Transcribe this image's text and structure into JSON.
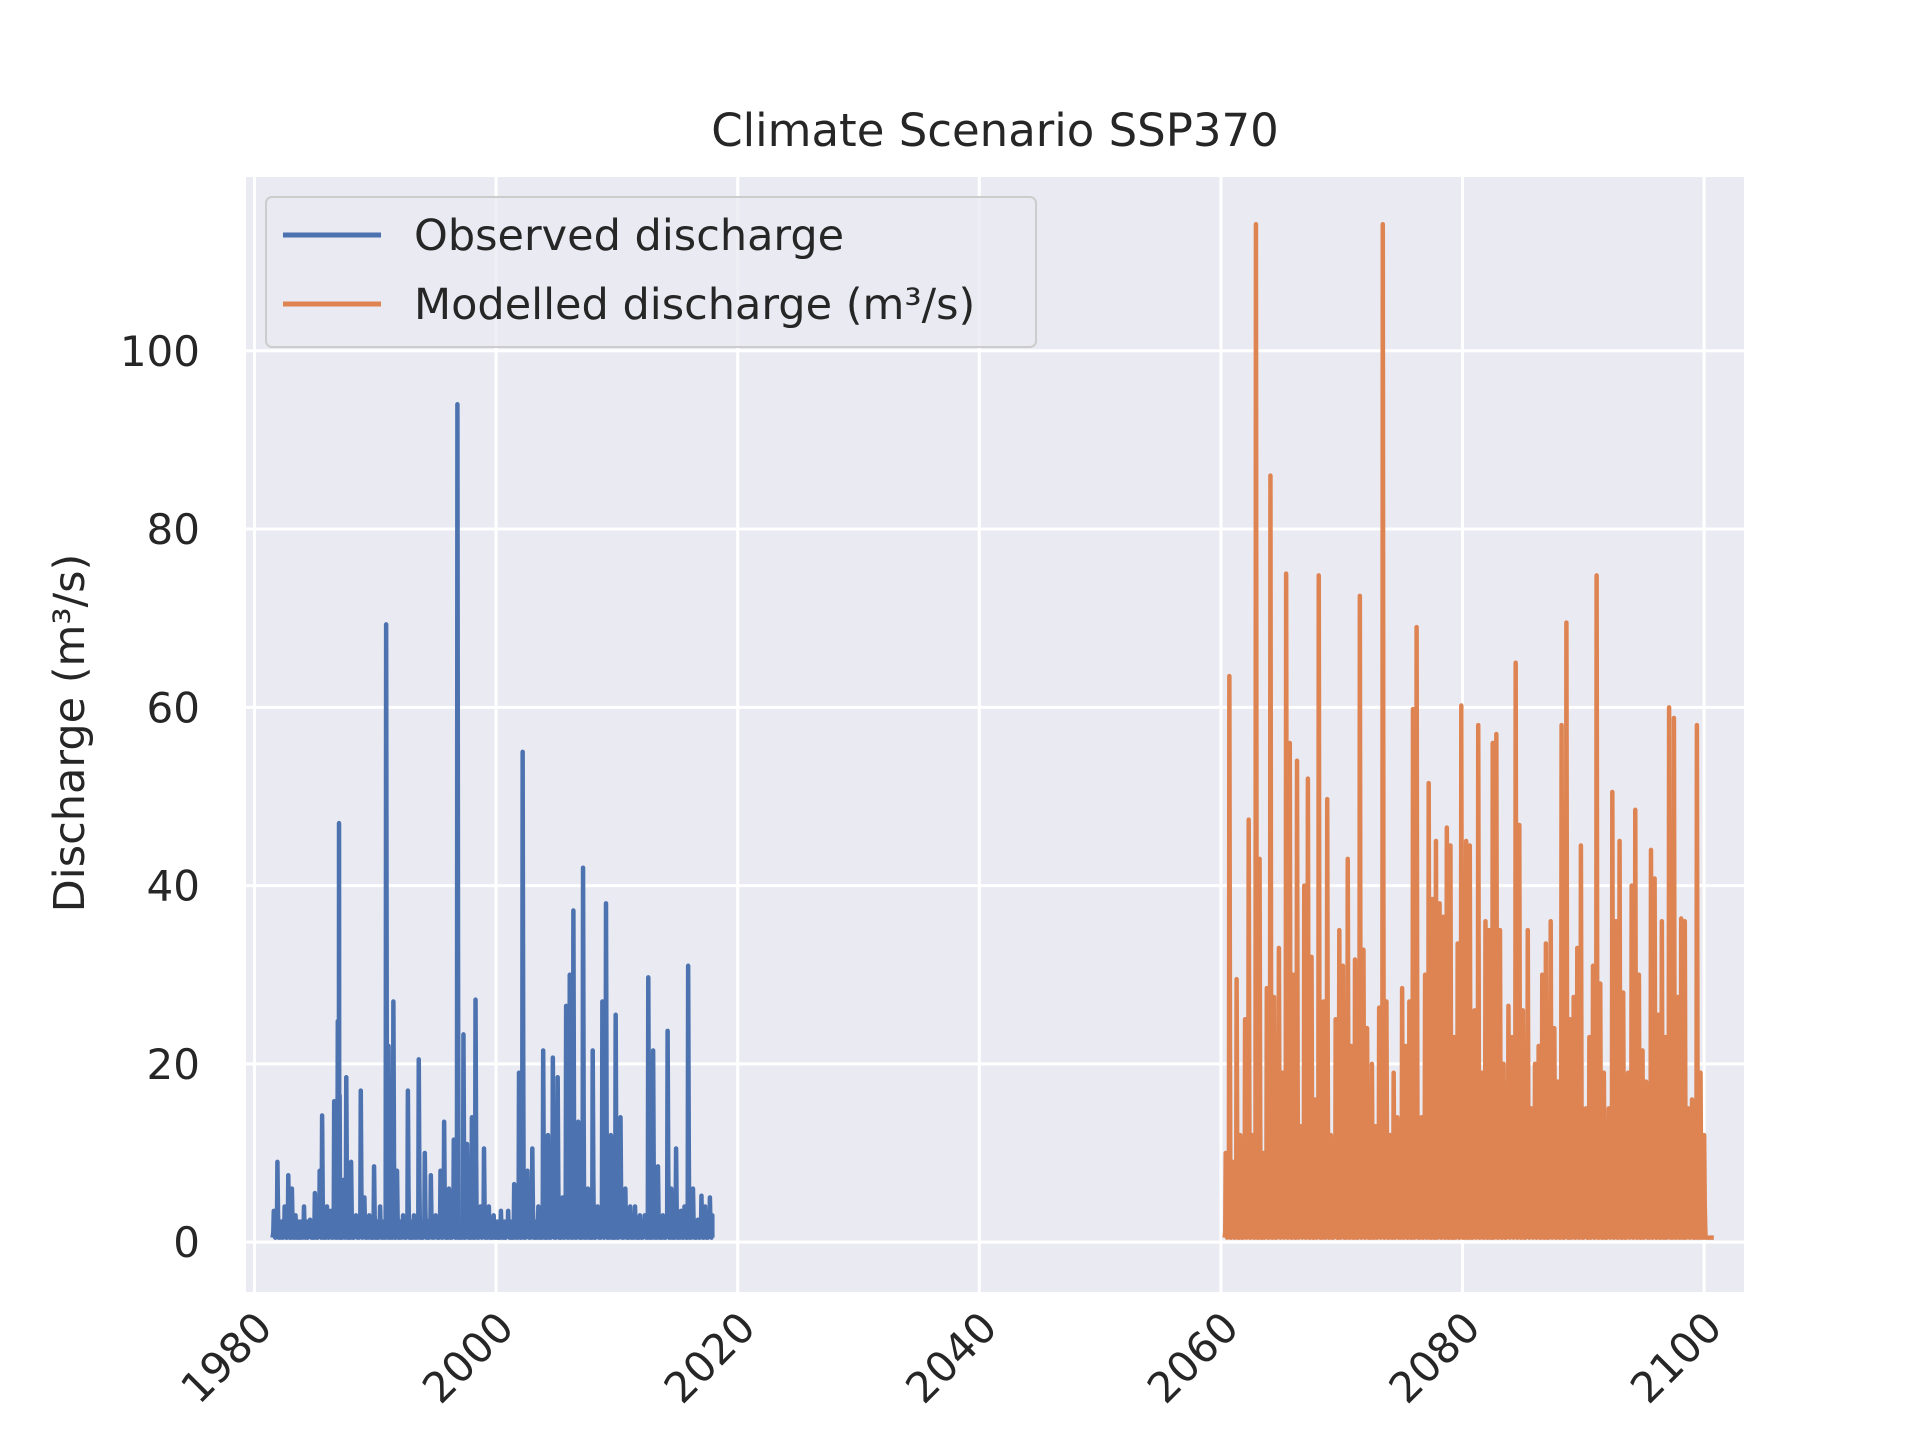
{
  "chart_data": {
    "type": "line",
    "title": "Climate Scenario SSP370",
    "xlabel": "",
    "ylabel": "Discharge (m³/s)",
    "xlim": [
      1979.3,
      2103.3
    ],
    "ylim": [
      -5.6,
      119.5
    ],
    "x_ticks": [
      1980,
      2000,
      2020,
      2040,
      2060,
      2080,
      2100
    ],
    "x_tick_labels": [
      "1980",
      "2000",
      "2020",
      "2040",
      "2060",
      "2080",
      "2100"
    ],
    "y_ticks": [
      0,
      20,
      40,
      60,
      80,
      100
    ],
    "y_tick_labels": [
      "0",
      "20",
      "40",
      "60",
      "80",
      "100"
    ],
    "grid": true,
    "legend_position": "upper-left",
    "background_color": "#EAEAF2",
    "grid_color": "#FFFFFF",
    "series": [
      {
        "name": "Observed discharge",
        "color": "#4C72B0",
        "x_start": 1981.5,
        "x_end": 2017.9,
        "baseline": 0.5,
        "peaks": [
          [
            1981.6,
            3.5
          ],
          [
            1981.9,
            9.0
          ],
          [
            1982.5,
            4.0
          ],
          [
            1982.8,
            7.5
          ],
          [
            1983.1,
            6.0
          ],
          [
            1983.4,
            3.0
          ],
          [
            1984.1,
            4.0
          ],
          [
            1984.6,
            2.5
          ],
          [
            1985.0,
            5.5
          ],
          [
            1985.4,
            8.0
          ],
          [
            1985.6,
            14.2
          ],
          [
            1986.0,
            4.0
          ],
          [
            1986.3,
            3.5
          ],
          [
            1986.6,
            15.8
          ],
          [
            1986.9,
            24.8
          ],
          [
            1987.0,
            47.0
          ],
          [
            1987.4,
            7.0
          ],
          [
            1987.6,
            18.5
          ],
          [
            1988.0,
            9.0
          ],
          [
            1988.4,
            3.0
          ],
          [
            1988.8,
            17.0
          ],
          [
            1989.1,
            5.0
          ],
          [
            1989.5,
            3.0
          ],
          [
            1989.9,
            8.5
          ],
          [
            1990.4,
            4.0
          ],
          [
            1990.9,
            69.3
          ],
          [
            1991.1,
            22.0
          ],
          [
            1991.5,
            27.0
          ],
          [
            1991.8,
            8.0
          ],
          [
            1992.3,
            3.0
          ],
          [
            1992.7,
            17.0
          ],
          [
            1993.2,
            3.0
          ],
          [
            1993.6,
            20.5
          ],
          [
            1994.1,
            10.0
          ],
          [
            1994.6,
            7.5
          ],
          [
            1995.0,
            3.0
          ],
          [
            1995.4,
            8.0
          ],
          [
            1995.7,
            13.5
          ],
          [
            1996.1,
            6.0
          ],
          [
            1996.5,
            11.5
          ],
          [
            1996.8,
            94.0
          ],
          [
            1997.3,
            23.3
          ],
          [
            1997.6,
            11.0
          ],
          [
            1998.0,
            14.0
          ],
          [
            1998.3,
            27.2
          ],
          [
            1998.7,
            4.0
          ],
          [
            1999.0,
            10.5
          ],
          [
            1999.4,
            4.0
          ],
          [
            1999.8,
            3.0
          ],
          [
            2000.4,
            3.5
          ],
          [
            2001.0,
            3.5
          ],
          [
            2001.5,
            6.5
          ],
          [
            2001.9,
            19.0
          ],
          [
            2002.2,
            55.0
          ],
          [
            2002.6,
            8.0
          ],
          [
            2003.0,
            10.5
          ],
          [
            2003.5,
            4.0
          ],
          [
            2003.9,
            21.5
          ],
          [
            2004.3,
            12.0
          ],
          [
            2004.7,
            20.7
          ],
          [
            2005.1,
            18.5
          ],
          [
            2005.5,
            5.0
          ],
          [
            2005.8,
            26.5
          ],
          [
            2006.1,
            30.0
          ],
          [
            2006.4,
            37.2
          ],
          [
            2006.8,
            13.5
          ],
          [
            2007.2,
            42.0
          ],
          [
            2007.6,
            6.0
          ],
          [
            2008.0,
            21.5
          ],
          [
            2008.4,
            4.0
          ],
          [
            2008.8,
            27.0
          ],
          [
            2009.1,
            38.0
          ],
          [
            2009.5,
            12.0
          ],
          [
            2009.9,
            25.5
          ],
          [
            2010.3,
            14.0
          ],
          [
            2010.7,
            6.0
          ],
          [
            2011.1,
            4.0
          ],
          [
            2011.5,
            4.0
          ],
          [
            2011.9,
            3.0
          ],
          [
            2012.3,
            3.0
          ],
          [
            2012.6,
            29.7
          ],
          [
            2013.0,
            21.5
          ],
          [
            2013.4,
            8.5
          ],
          [
            2013.8,
            3.0
          ],
          [
            2014.2,
            23.7
          ],
          [
            2014.5,
            6.0
          ],
          [
            2014.9,
            10.5
          ],
          [
            2015.3,
            3.5
          ],
          [
            2015.6,
            4.0
          ],
          [
            2015.9,
            31.0
          ],
          [
            2016.3,
            6.0
          ],
          [
            2016.7,
            2.5
          ],
          [
            2017.0,
            5.2
          ],
          [
            2017.3,
            4.0
          ],
          [
            2017.7,
            5.0
          ],
          [
            2017.9,
            3.0
          ]
        ]
      },
      {
        "name": "Modelled discharge (m³/s)",
        "color": "#DD8452",
        "x_start": 2060.3,
        "x_end": 2100.8,
        "baseline": 0.5,
        "peaks": [
          [
            2060.4,
            10.0
          ],
          [
            2060.7,
            63.5
          ],
          [
            2061.0,
            9.0
          ],
          [
            2061.3,
            29.5
          ],
          [
            2061.6,
            12.0
          ],
          [
            2062.0,
            25.0
          ],
          [
            2062.3,
            47.4
          ],
          [
            2062.6,
            12.0
          ],
          [
            2062.9,
            114.2
          ],
          [
            2063.2,
            43.0
          ],
          [
            2063.5,
            10.0
          ],
          [
            2063.8,
            28.5
          ],
          [
            2064.1,
            86.0
          ],
          [
            2064.4,
            27.5
          ],
          [
            2064.8,
            33.0
          ],
          [
            2065.1,
            19.0
          ],
          [
            2065.4,
            75.0
          ],
          [
            2065.7,
            56.0
          ],
          [
            2066.0,
            30.0
          ],
          [
            2066.3,
            54.0
          ],
          [
            2066.6,
            13.0
          ],
          [
            2066.9,
            40.0
          ],
          [
            2067.2,
            52.0
          ],
          [
            2067.5,
            32.0
          ],
          [
            2067.8,
            16.0
          ],
          [
            2068.1,
            74.8
          ],
          [
            2068.5,
            27.0
          ],
          [
            2068.8,
            49.7
          ],
          [
            2069.1,
            12.0
          ],
          [
            2069.5,
            25.0
          ],
          [
            2069.8,
            35.0
          ],
          [
            2070.1,
            31.0
          ],
          [
            2070.5,
            43.0
          ],
          [
            2070.8,
            22.0
          ],
          [
            2071.1,
            31.7
          ],
          [
            2071.5,
            72.5
          ],
          [
            2071.8,
            32.8
          ],
          [
            2072.1,
            24.0
          ],
          [
            2072.5,
            20.0
          ],
          [
            2072.8,
            13.0
          ],
          [
            2073.1,
            26.3
          ],
          [
            2073.4,
            114.2
          ],
          [
            2073.7,
            27.0
          ],
          [
            2074.0,
            12.0
          ],
          [
            2074.3,
            19.0
          ],
          [
            2074.6,
            14.0
          ],
          [
            2075.0,
            28.5
          ],
          [
            2075.3,
            22.0
          ],
          [
            2075.6,
            27.0
          ],
          [
            2075.9,
            59.8
          ],
          [
            2076.2,
            69.0
          ],
          [
            2076.6,
            14.0
          ],
          [
            2076.9,
            30.0
          ],
          [
            2077.2,
            51.5
          ],
          [
            2077.5,
            38.5
          ],
          [
            2077.8,
            45.0
          ],
          [
            2078.1,
            38.0
          ],
          [
            2078.4,
            36.5
          ],
          [
            2078.7,
            46.5
          ],
          [
            2079.0,
            44.5
          ],
          [
            2079.3,
            23.0
          ],
          [
            2079.6,
            33.5
          ],
          [
            2079.9,
            60.2
          ],
          [
            2080.3,
            45.0
          ],
          [
            2080.6,
            44.5
          ],
          [
            2081.0,
            26.0
          ],
          [
            2081.3,
            58.0
          ],
          [
            2081.6,
            19.0
          ],
          [
            2081.9,
            36.0
          ],
          [
            2082.2,
            35.0
          ],
          [
            2082.5,
            56.0
          ],
          [
            2082.8,
            57.0
          ],
          [
            2083.1,
            35.0
          ],
          [
            2083.4,
            20.0
          ],
          [
            2083.8,
            26.5
          ],
          [
            2084.1,
            23.0
          ],
          [
            2084.4,
            65.0
          ],
          [
            2084.7,
            46.8
          ],
          [
            2085.0,
            26.0
          ],
          [
            2085.4,
            35.0
          ],
          [
            2085.7,
            15.0
          ],
          [
            2086.0,
            20.0
          ],
          [
            2086.3,
            22.0
          ],
          [
            2086.6,
            30.0
          ],
          [
            2086.9,
            33.5
          ],
          [
            2087.3,
            36.0
          ],
          [
            2087.6,
            24.0
          ],
          [
            2087.9,
            18.0
          ],
          [
            2088.2,
            58.0
          ],
          [
            2088.6,
            69.5
          ],
          [
            2088.9,
            25.0
          ],
          [
            2089.2,
            27.5
          ],
          [
            2089.5,
            33.0
          ],
          [
            2089.8,
            44.5
          ],
          [
            2090.2,
            15.0
          ],
          [
            2090.5,
            23.0
          ],
          [
            2090.8,
            31.0
          ],
          [
            2091.1,
            74.8
          ],
          [
            2091.4,
            29.0
          ],
          [
            2091.7,
            19.0
          ],
          [
            2092.1,
            15.0
          ],
          [
            2092.4,
            50.5
          ],
          [
            2092.7,
            36.0
          ],
          [
            2093.0,
            45.0
          ],
          [
            2093.3,
            28.0
          ],
          [
            2093.7,
            19.0
          ],
          [
            2094.0,
            40.0
          ],
          [
            2094.3,
            48.5
          ],
          [
            2094.6,
            30.0
          ],
          [
            2094.9,
            21.5
          ],
          [
            2095.2,
            18.0
          ],
          [
            2095.6,
            44.0
          ],
          [
            2095.9,
            40.8
          ],
          [
            2096.2,
            25.5
          ],
          [
            2096.5,
            36.0
          ],
          [
            2096.8,
            23.0
          ],
          [
            2097.1,
            60.0
          ],
          [
            2097.5,
            58.8
          ],
          [
            2097.8,
            27.5
          ],
          [
            2098.1,
            36.3
          ],
          [
            2098.4,
            36.0
          ],
          [
            2098.7,
            15.0
          ],
          [
            2099.0,
            16.0
          ],
          [
            2099.4,
            58.0
          ],
          [
            2099.7,
            19.0
          ],
          [
            2100.0,
            12.0
          ]
        ]
      }
    ]
  }
}
